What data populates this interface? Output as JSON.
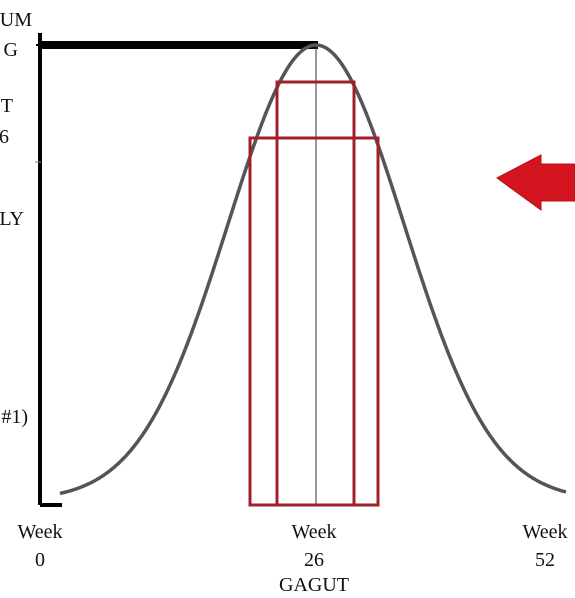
{
  "y_axis_labels": {
    "top_line1": "UM",
    "top_line2": "G",
    "second_line1": "T",
    "second_line2": "6",
    "middle": "LY",
    "lower": "#1)"
  },
  "x_axis_labels": {
    "start_word": "Week",
    "start_number": "0",
    "mid_word": "Week",
    "mid_number": "26",
    "mid_caption": "GAGUT",
    "end_word": "Week",
    "end_number": "52"
  },
  "colors": {
    "curve": "#555555",
    "axis": "#000000",
    "boxes": "#a0202a",
    "arrow": "#d4141e"
  },
  "icons": {
    "arrow": "left-arrow-icon"
  }
}
